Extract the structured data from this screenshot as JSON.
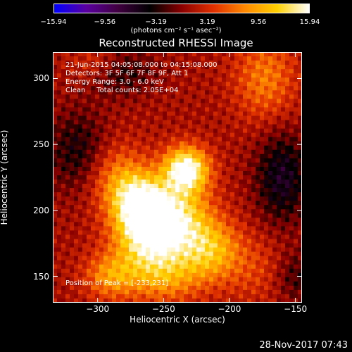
{
  "colorbar": {
    "ticks": [
      "−15.94",
      "−9.56",
      "−3.19",
      "3.19",
      "9.56",
      "15.94"
    ],
    "tick_values": [
      -15.94,
      -9.56,
      -3.19,
      3.19,
      9.56,
      15.94
    ],
    "units": "(photons cm⁻² s⁻¹ asec⁻²)",
    "range": [
      -15.94,
      15.94
    ],
    "colormap": [
      "#0000ff",
      "#5a00a0",
      "#400040",
      "#000000",
      "#8a0000",
      "#e03000",
      "#ff8a00",
      "#ffd000",
      "#ffffff"
    ]
  },
  "info": {
    "line1": "21-Jun-2015 04:05:08.000 to 04:15:08.000",
    "line2": "Detectors: 3F 5F 6F 7F 8F 9F, Att 1",
    "line3": "Energy Range: 3.0 - 6.0 keV",
    "line4": "Clean     Total counts: 2.05E+04"
  },
  "peak_label": "Position of Peak = [-233,231]",
  "timestamp": "28-Nov-2017 07:43",
  "chart_data": {
    "type": "heatmap",
    "title": "Reconstructed RHESSI Image",
    "xlabel": "Heliocentric X (arcsec)",
    "ylabel": "Heliocentric Y (arcsec)",
    "xlim": [
      -334,
      -145
    ],
    "ylim": [
      130,
      320
    ],
    "x_ticks": [
      "−300",
      "−250",
      "−200",
      "−150"
    ],
    "x_tick_values": [
      -300,
      -250,
      -200,
      -150
    ],
    "y_ticks": [
      "150",
      "200",
      "250",
      "300"
    ],
    "y_tick_values": [
      150,
      200,
      250,
      300
    ],
    "peak": [
      -233,
      231
    ],
    "sources": [
      {
        "x": -233,
        "y": 231,
        "amp": 15.94,
        "sx": 12,
        "sy": 12
      },
      {
        "x": -268,
        "y": 205,
        "amp": 14.5,
        "sx": 14,
        "sy": 15
      },
      {
        "x": -240,
        "y": 195,
        "amp": 11.0,
        "sx": 18,
        "sy": 18
      },
      {
        "x": -262,
        "y": 178,
        "amp": 11.5,
        "sx": 18,
        "sy": 16
      },
      {
        "x": -215,
        "y": 170,
        "amp": 9.0,
        "sx": 16,
        "sy": 16
      },
      {
        "x": -250,
        "y": 150,
        "amp": 7.5,
        "sx": 20,
        "sy": 14
      },
      {
        "x": -285,
        "y": 225,
        "amp": 6.0,
        "sx": 16,
        "sy": 18
      },
      {
        "x": -290,
        "y": 150,
        "amp": 7.0,
        "sx": 14,
        "sy": 12
      },
      {
        "x": -173,
        "y": 300,
        "amp": 6.0,
        "sx": 16,
        "sy": 22
      },
      {
        "x": -300,
        "y": 310,
        "amp": 4.0,
        "sx": 14,
        "sy": 10
      },
      {
        "x": -180,
        "y": 155,
        "amp": 3.0,
        "sx": 18,
        "sy": 18
      },
      {
        "x": -160,
        "y": 225,
        "amp": -7.0,
        "sx": 14,
        "sy": 24
      },
      {
        "x": -315,
        "y": 245,
        "amp": -5.0,
        "sx": 16,
        "sy": 22
      },
      {
        "x": -285,
        "y": 305,
        "amp": -5.0,
        "sx": 18,
        "sy": 12
      },
      {
        "x": -150,
        "y": 150,
        "amp": -4.0,
        "sx": 12,
        "sy": 14
      }
    ]
  }
}
